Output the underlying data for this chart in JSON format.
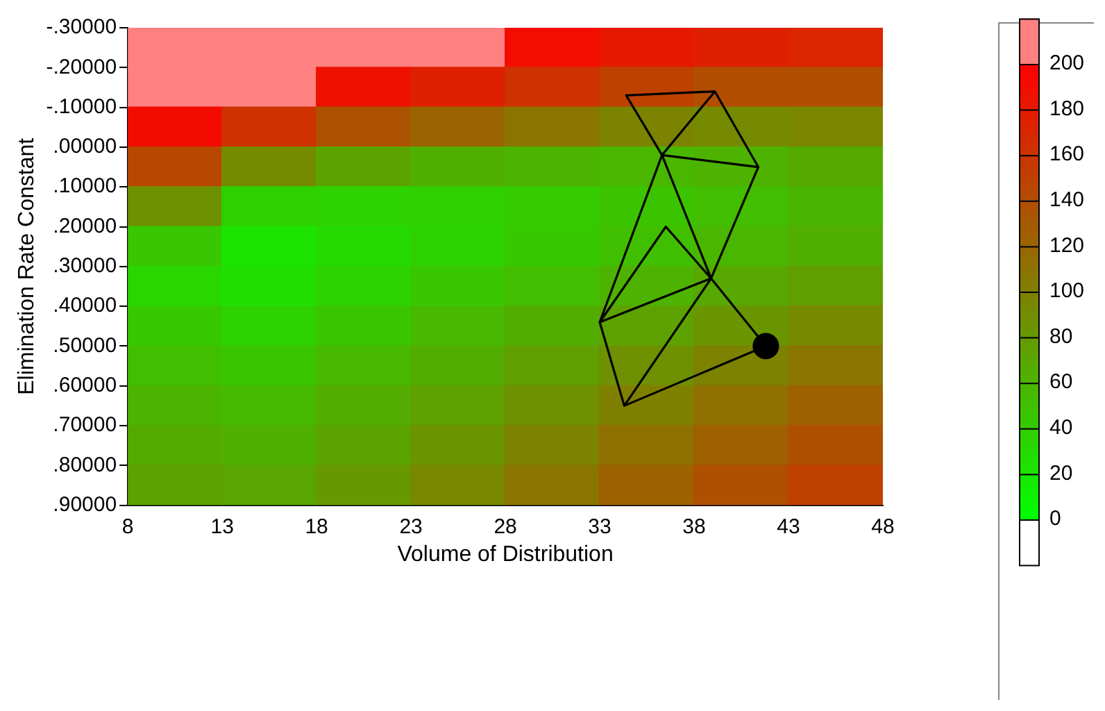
{
  "chart_data": {
    "type": "heatmap",
    "xlabel": "Volume of Distribution",
    "ylabel": "Elimination Rate Constant",
    "x": [
      10.5,
      15.5,
      20.5,
      25.5,
      30.5,
      35.5,
      40.5,
      45.5
    ],
    "cells": [
      [
        210,
        210,
        210,
        210,
        190,
        181,
        175,
        172
      ],
      [
        210,
        210,
        187,
        175,
        161,
        149,
        140,
        139
      ],
      [
        191,
        161,
        136,
        121,
        109,
        97,
        92,
        96
      ],
      [
        144,
        91,
        71,
        63,
        59,
        57,
        60,
        67
      ],
      [
        87,
        37,
        35,
        37,
        41,
        47,
        52,
        58
      ],
      [
        44,
        21,
        29,
        35,
        42,
        50,
        57,
        63
      ],
      [
        32,
        25,
        35,
        44,
        52,
        60,
        68,
        76
      ],
      [
        42,
        35,
        45,
        55,
        64,
        73,
        82,
        92
      ],
      [
        51,
        45,
        55,
        65,
        76,
        87,
        98,
        108
      ],
      [
        59,
        54,
        64,
        74,
        87,
        100,
        112,
        124
      ],
      [
        66,
        62,
        71,
        83,
        98,
        112,
        125,
        137
      ],
      [
        72,
        70,
        80,
        93,
        108,
        123,
        137,
        149
      ]
    ],
    "clim": [
      -20,
      220
    ],
    "cticks": [
      0,
      20,
      40,
      60,
      80,
      100,
      120,
      140,
      160,
      180,
      200
    ],
    "xlim": [
      8,
      48
    ],
    "xticks": [
      8,
      13,
      18,
      23,
      28,
      33,
      38,
      43,
      48
    ],
    "ylim": [
      0.9,
      -0.3
    ],
    "yticks": [
      {
        "value": -0.3,
        "label": "-.30000"
      },
      {
        "value": -0.2,
        "label": "-.20000"
      },
      {
        "value": -0.1,
        "label": "-.10000"
      },
      {
        "value": 0,
        "label": ".00000"
      },
      {
        "value": 0.1,
        "label": ".10000"
      },
      {
        "value": 0.2,
        "label": ".20000"
      },
      {
        "value": 0.3,
        "label": ".30000"
      },
      {
        "value": 0.4,
        "label": ".40000"
      },
      {
        "value": 0.5,
        "label": ".50000"
      },
      {
        "value": 0.6,
        "label": ".60000"
      },
      {
        "value": 0.7,
        "label": ".70000"
      },
      {
        "value": 0.8,
        "label": ".80000"
      },
      {
        "value": 0.9,
        "label": ".90000"
      }
    ],
    "grid": false,
    "legend": false,
    "series": [
      {
        "type": "line",
        "color": "#000000",
        "marker": "none",
        "x": [
          39.1,
          34.4,
          36.3,
          39.1,
          41.4,
          36.3,
          38.9,
          41.4,
          null,
          36.3,
          33.0,
          36.5,
          38.9,
          33.0,
          34.3,
          38.9,
          41.8,
          34.3
        ],
        "values": [
          -0.14,
          -0.13,
          0.02,
          -0.14,
          0.05,
          0.02,
          0.33,
          0.05,
          null,
          0.02,
          0.44,
          0.2,
          0.33,
          0.44,
          0.65,
          0.33,
          0.5,
          0.65
        ]
      },
      {
        "type": "scatter",
        "color": "#000000",
        "marker": "circle",
        "x": [
          41.8
        ],
        "values": [
          0.5
        ]
      }
    ]
  }
}
